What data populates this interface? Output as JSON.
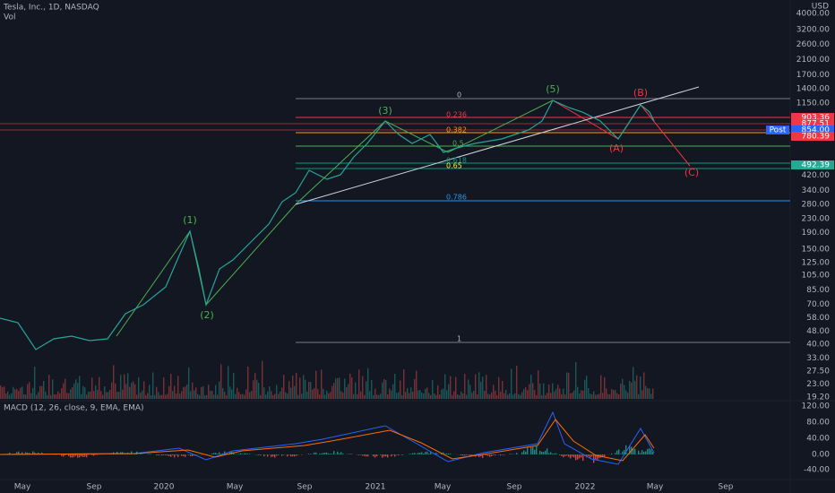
{
  "header": {
    "symbol": "Tesla, Inc., 1D, NASDAQ",
    "volume": "Vol",
    "macd": "MACD (12, 26, close, 9, EMA, EMA)",
    "currency": "USD"
  },
  "price_axis": [
    "4000.00",
    "3200.00",
    "2600.00",
    "2100.00",
    "1700.00",
    "1400.00",
    "1150.00",
    "420.00",
    "340.00",
    "280.00",
    "230.00",
    "190.00",
    "150.00",
    "125.00",
    "105.00",
    "85.00",
    "70.00",
    "58.00",
    "48.00",
    "40.00",
    "33.00",
    "27.50",
    "23.00",
    "19.20"
  ],
  "price_tags": [
    {
      "label": "903.36",
      "color": "#f23645"
    },
    {
      "label": "877.51",
      "color": "#f23645"
    },
    {
      "label": "854.00",
      "note": "Post",
      "color": "#2962ff"
    },
    {
      "label": "780.39",
      "color": "#f23645"
    },
    {
      "label": "492.39",
      "color": "#22ab94"
    }
  ],
  "macd_axis": [
    "120.00",
    "80.00",
    "40.00",
    "0.00",
    "-40.00"
  ],
  "time_axis": [
    "May",
    "Sep",
    "2020",
    "May",
    "Sep",
    "2021",
    "May",
    "Sep",
    "2022",
    "May",
    "Sep"
  ],
  "fib_levels": [
    "0",
    "0.236",
    "0.382",
    "0.5",
    "0.618",
    "0.65",
    "0.786",
    "1"
  ],
  "waves": [
    "(1)",
    "(2)",
    "(3)",
    "(5)",
    "(A)",
    "(B)",
    "(C)"
  ]
}
